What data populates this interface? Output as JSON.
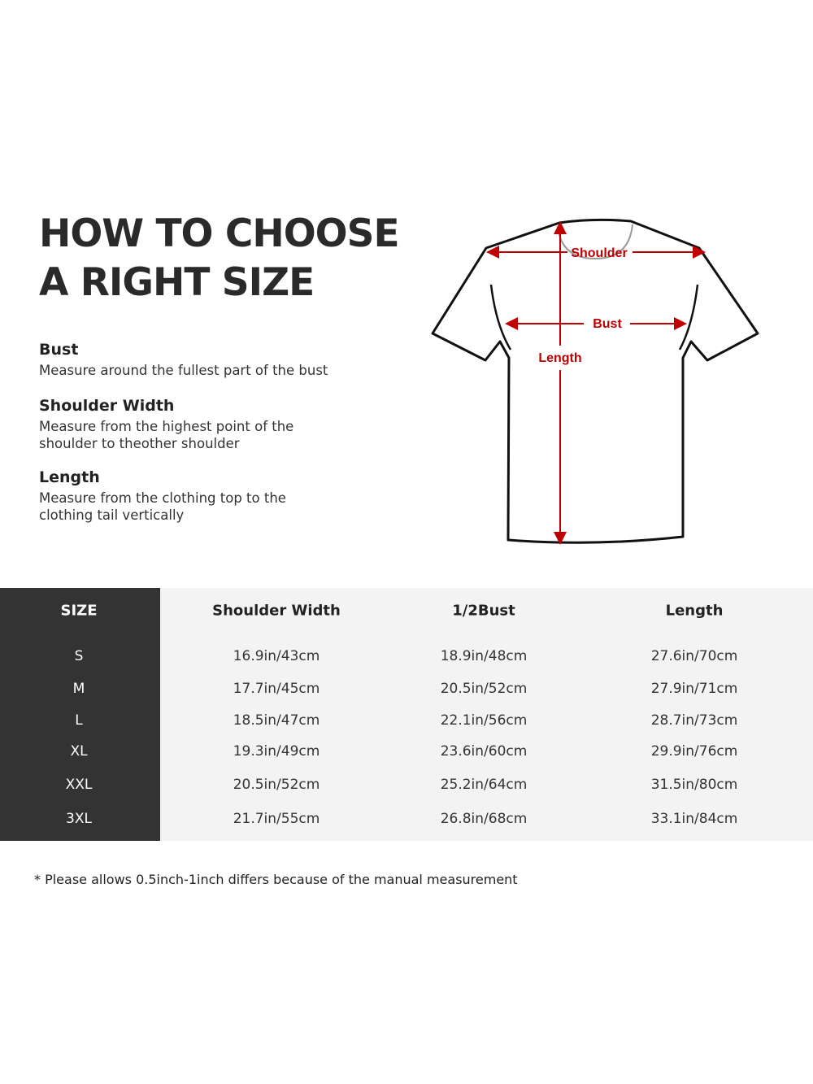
{
  "title": {
    "line1": "HOW TO CHOOSE",
    "line2": "A RIGHT SIZE"
  },
  "definitions": [
    {
      "term": "Bust",
      "text": "Measure around the fullest part of the bust"
    },
    {
      "term": "Shoulder Width",
      "text": "Measure from the highest point of the shoulder to theother shoulder"
    },
    {
      "term": "Length",
      "text": "Measure from the clothing top to the clothing tail vertically"
    }
  ],
  "diagram": {
    "labels": {
      "shoulder": "Shoulder",
      "bust": "Bust",
      "length": "Length"
    },
    "arrow_color": "#c00000",
    "outline_color": "#111111"
  },
  "table": {
    "headers": [
      "SIZE",
      "Shoulder Width",
      "1/2Bust",
      "Length"
    ],
    "rows": [
      [
        "S",
        "16.9in/43cm",
        "18.9in/48cm",
        "27.6in/70cm"
      ],
      [
        "M",
        "17.7in/45cm",
        "20.5in/52cm",
        "27.9in/71cm"
      ],
      [
        "L",
        "18.5in/47cm",
        "22.1in/56cm",
        "28.7in/73cm"
      ],
      [
        "XL",
        "19.3in/49cm",
        "23.6in/60cm",
        "29.9in/76cm"
      ],
      [
        "XXL",
        "20.5in/52cm",
        "25.2in/64cm",
        "31.5in/80cm"
      ],
      [
        "3XL",
        "21.7in/55cm",
        "26.8in/68cm",
        "33.1in/84cm"
      ]
    ],
    "size_column_color": "#333333",
    "body_color": "#f3f3f3"
  },
  "note": "* Please allows 0.5inch-1inch differs because of the  manual measurement"
}
